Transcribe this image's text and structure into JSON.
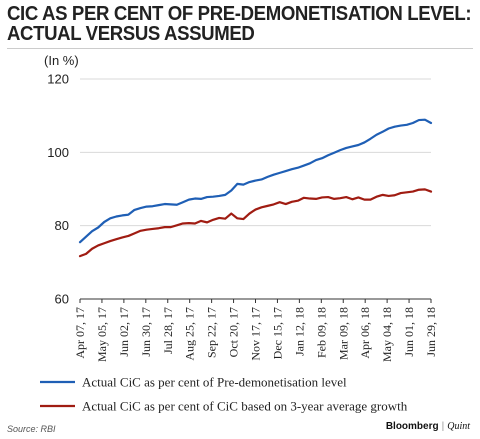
{
  "title_line1": "CIC AS PER CENT OF PRE-DEMONETISATION LEVEL:",
  "title_line2": "ACTUAL VERSUS ASSUMED",
  "source": "Source: RBI",
  "brand": {
    "name": "Bloomberg",
    "sub": "Quint"
  },
  "chart_data": {
    "type": "line",
    "unit_label": "(In %)",
    "ylim": [
      60,
      120
    ],
    "yticks": [
      60,
      80,
      100,
      120
    ],
    "grid": true,
    "x_tick_labels": [
      "Apr 07, 17",
      "May 05, 17",
      "Jun 02, 17",
      "Jun 30, 17",
      "Jul 28, 17",
      "Aug 25, 17",
      "Sep 22, 17",
      "Oct 20, 17",
      "Nov 17, 17",
      "Dec 15, 17",
      "Jan 12, 18",
      "Feb 09, 18",
      "Mar 09, 18",
      "Apr 06, 18",
      "May 04, 18",
      "Jun 01, 18",
      "Jun 29, 18"
    ],
    "legend_position": "bottom",
    "series": [
      {
        "name": "Actual CiC as per cent of Pre-demonetisation level",
        "color": "#1f5fb5",
        "values": [
          75.5,
          77.0,
          78.5,
          79.5,
          81.0,
          82.0,
          82.5,
          82.8,
          83.0,
          84.3,
          84.8,
          85.2,
          85.3,
          85.6,
          85.9,
          85.8,
          85.7,
          86.4,
          87.1,
          87.4,
          87.3,
          87.8,
          87.9,
          88.1,
          88.4,
          89.6,
          91.4,
          91.2,
          91.9,
          92.3,
          92.6,
          93.3,
          93.9,
          94.4,
          94.9,
          95.4,
          95.8,
          96.4,
          97.0,
          97.9,
          98.4,
          99.2,
          99.9,
          100.6,
          101.2,
          101.6,
          102.0,
          102.7,
          103.7,
          104.8,
          105.6,
          106.5,
          107.0,
          107.3,
          107.5,
          108.0,
          108.8,
          108.9,
          108.0
        ],
        "line_width": 2.2
      },
      {
        "name": "Actual CiC as per cent of CiC based on 3-year average growth",
        "color": "#a01c12",
        "values": [
          71.7,
          72.3,
          73.7,
          74.6,
          75.2,
          75.8,
          76.3,
          76.8,
          77.2,
          77.9,
          78.6,
          78.9,
          79.1,
          79.3,
          79.6,
          79.6,
          80.1,
          80.6,
          80.7,
          80.6,
          81.3,
          80.9,
          81.6,
          82.1,
          81.9,
          83.3,
          82.0,
          81.8,
          83.3,
          84.4,
          85.0,
          85.4,
          85.8,
          86.4,
          85.9,
          86.5,
          86.8,
          87.6,
          87.4,
          87.3,
          87.7,
          87.8,
          87.3,
          87.5,
          87.8,
          87.2,
          87.7,
          87.1,
          87.1,
          87.9,
          88.4,
          88.1,
          88.3,
          88.9,
          89.1,
          89.3,
          89.8,
          89.9,
          89.3
        ],
        "line_width": 2.2
      }
    ]
  }
}
